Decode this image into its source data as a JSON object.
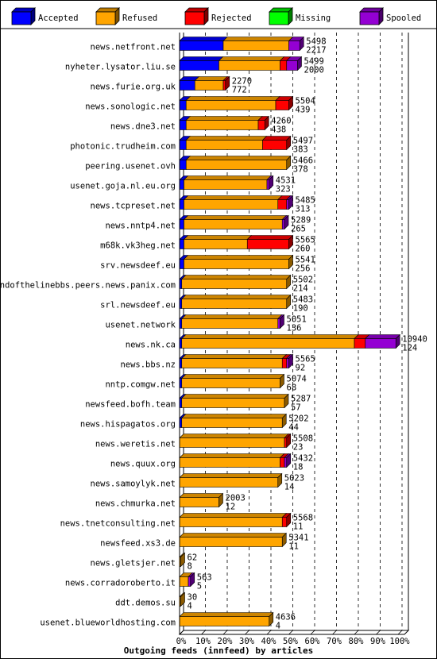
{
  "chart_data": {
    "type": "bar",
    "stacked": true,
    "orientation": "horizontal",
    "title": "Outgoing feeds (innfeed) by articles",
    "xlabel": "Outgoing feeds (innfeed) by articles",
    "xlim": [
      0,
      100
    ],
    "xticks": [
      "0%",
      "10%",
      "20%",
      "30%",
      "40%",
      "50%",
      "60%",
      "70%",
      "80%",
      "90%",
      "100%"
    ],
    "grid": "vertical dashed",
    "legend_position": "top",
    "legend": [
      {
        "name": "Accepted",
        "color": "#0000ff"
      },
      {
        "name": "Refused",
        "color": "#ffa500"
      },
      {
        "name": "Rejected",
        "color": "#ff0000"
      },
      {
        "name": "Missing",
        "color": "#00ff00"
      },
      {
        "name": "Spooled",
        "color": "#9400d3"
      }
    ],
    "rows": [
      {
        "label": "news.netfront.net",
        "total": "5498",
        "accepted": "2217",
        "pct": [
          20,
          30,
          0,
          0,
          5
        ]
      },
      {
        "label": "nyheter.lysator.liu.se",
        "total": "5499",
        "accepted": "2000",
        "pct": [
          18,
          28,
          3,
          0,
          5
        ]
      },
      {
        "label": "news.furie.org.uk",
        "total": "2270",
        "accepted": "772",
        "pct": [
          7,
          13,
          1,
          0,
          0
        ]
      },
      {
        "label": "news.sonologic.net",
        "total": "5504",
        "accepted": "439",
        "pct": [
          3,
          41,
          6,
          0,
          0
        ]
      },
      {
        "label": "news.dne3.net",
        "total": "4260",
        "accepted": "438",
        "pct": [
          3,
          33,
          3,
          0,
          0
        ]
      },
      {
        "label": "photonic.trudheim.com",
        "total": "5497",
        "accepted": "383",
        "pct": [
          3,
          35,
          11,
          0,
          0
        ]
      },
      {
        "label": "peering.usenet.ovh",
        "total": "5466",
        "accepted": "378",
        "pct": [
          3,
          46,
          0,
          0,
          0
        ]
      },
      {
        "label": "usenet.goja.nl.eu.org",
        "total": "4531",
        "accepted": "323",
        "pct": [
          2,
          38,
          0,
          0,
          1
        ]
      },
      {
        "label": "news.tcpreset.net",
        "total": "5485",
        "accepted": "313",
        "pct": [
          2,
          43,
          4,
          0,
          1
        ]
      },
      {
        "label": "news.nntp4.net",
        "total": "5289",
        "accepted": "265",
        "pct": [
          2,
          45,
          0,
          0,
          1
        ]
      },
      {
        "label": "m68k.vk3heg.net",
        "total": "5565",
        "accepted": "260",
        "pct": [
          2,
          29,
          19,
          0,
          0
        ]
      },
      {
        "label": "srv.newsdeef.eu",
        "total": "5541",
        "accepted": "256",
        "pct": [
          2,
          48,
          0,
          0,
          0
        ]
      },
      {
        "label": "endofthelinebbs.peers.news.panix.com",
        "total": "5502",
        "accepted": "214",
        "pct": [
          1,
          48,
          0,
          0,
          0
        ]
      },
      {
        "label": "srl.newsdeef.eu",
        "total": "5483",
        "accepted": "190",
        "pct": [
          1,
          48,
          0,
          0,
          0
        ]
      },
      {
        "label": "usenet.network",
        "total": "5051",
        "accepted": "136",
        "pct": [
          1,
          44,
          0,
          0,
          1
        ]
      },
      {
        "label": "news.nk.ca",
        "total": "10940",
        "accepted": "124",
        "pct": [
          1,
          79,
          5,
          0,
          14
        ]
      },
      {
        "label": "news.bbs.nz",
        "total": "5565",
        "accepted": "92",
        "pct": [
          1,
          46,
          2,
          0,
          1
        ]
      },
      {
        "label": "nntp.comgw.net",
        "total": "5074",
        "accepted": "68",
        "pct": [
          1,
          45,
          0,
          0,
          0
        ]
      },
      {
        "label": "newsfeed.bofh.team",
        "total": "5287",
        "accepted": "57",
        "pct": [
          1,
          47,
          0,
          0,
          0
        ]
      },
      {
        "label": "news.hispagatos.org",
        "total": "5202",
        "accepted": "44",
        "pct": [
          1,
          46,
          0,
          0,
          0
        ]
      },
      {
        "label": "news.weretis.net",
        "total": "5508",
        "accepted": "23",
        "pct": [
          0,
          48,
          1,
          0,
          0
        ]
      },
      {
        "label": "news.quux.org",
        "total": "5432",
        "accepted": "18",
        "pct": [
          0,
          46,
          2,
          0,
          1
        ]
      },
      {
        "label": "news.samoylyk.net",
        "total": "5023",
        "accepted": "14",
        "pct": [
          0,
          45,
          0,
          0,
          0
        ]
      },
      {
        "label": "news.chmurka.net",
        "total": "2003",
        "accepted": "12",
        "pct": [
          0,
          18,
          0,
          0,
          0
        ]
      },
      {
        "label": "news.tnetconsulting.net",
        "total": "5568",
        "accepted": "11",
        "pct": [
          0,
          47,
          2,
          0,
          0
        ]
      },
      {
        "label": "newsfeed.xs3.de",
        "total": "5341",
        "accepted": "11",
        "pct": [
          0,
          47,
          0,
          0,
          0
        ]
      },
      {
        "label": "news.gletsjer.net",
        "total": "62",
        "accepted": "8",
        "pct": [
          0,
          0.5,
          0,
          0,
          0
        ]
      },
      {
        "label": "news.corradoroberto.it",
        "total": "563",
        "accepted": "5",
        "pct": [
          0,
          4,
          0,
          0,
          1
        ]
      },
      {
        "label": "ddt.demos.su",
        "total": "30",
        "accepted": "4",
        "pct": [
          0,
          0.3,
          0,
          0,
          0
        ]
      },
      {
        "label": "usenet.blueworldhosting.com",
        "total": "4636",
        "accepted": "4",
        "pct": [
          0,
          41,
          0,
          0,
          0
        ]
      }
    ]
  }
}
